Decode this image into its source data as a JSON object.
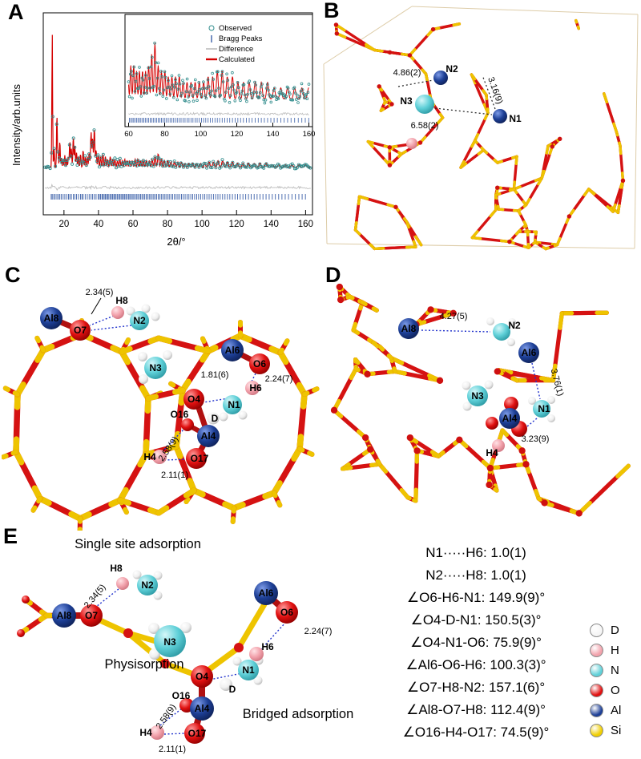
{
  "atom_colors": {
    "D": "#f5f5f5",
    "H": "#f2a2ac",
    "N": "#5fd0d8",
    "O": "#e01010",
    "Al": "#1d3f96",
    "Si": "#f0ce00"
  },
  "panel_a": {
    "label": "A",
    "ylabel": "Intensity/arb.units",
    "xlabel": "2θ/°"
  },
  "chart_data": {
    "type": "line",
    "xlabel": "2θ/°",
    "ylabel": "Intensity/arb.units",
    "xlim": [
      8,
      164
    ],
    "x_ticks": [
      20,
      40,
      60,
      80,
      100,
      120,
      140,
      160
    ],
    "grid": false,
    "legend_position": "inset-top-right",
    "series": [
      {
        "name": "Observed",
        "marker": "open-circle",
        "color": "#2e8b8b"
      },
      {
        "name": "Bragg Peaks",
        "marker": "vertical-tick",
        "color": "#3a5fa8"
      },
      {
        "name": "Difference",
        "marker": "line",
        "color": "#bcbcbc"
      },
      {
        "name": "Calculated",
        "marker": "line",
        "color": "#d40000"
      }
    ],
    "peaks_2theta_intensity": [
      [
        13.2,
        100
      ],
      [
        14.3,
        14
      ],
      [
        15.9,
        40
      ],
      [
        16.6,
        12
      ],
      [
        17.6,
        20
      ],
      [
        18.5,
        7
      ],
      [
        19.5,
        6
      ],
      [
        20.5,
        9
      ],
      [
        21.6,
        6
      ],
      [
        22.6,
        8
      ],
      [
        23.4,
        20
      ],
      [
        24.3,
        14
      ],
      [
        25.4,
        23
      ],
      [
        26.3,
        16
      ],
      [
        27.3,
        11
      ],
      [
        28.4,
        8
      ],
      [
        29.6,
        10
      ],
      [
        31.1,
        13
      ],
      [
        32.3,
        8
      ],
      [
        33.5,
        8
      ],
      [
        34.6,
        11
      ],
      [
        35.7,
        26
      ],
      [
        36.6,
        22
      ],
      [
        37.6,
        29
      ],
      [
        38.6,
        13
      ],
      [
        39.8,
        9
      ],
      [
        41.2,
        8
      ],
      [
        42.6,
        10
      ],
      [
        44.0,
        8
      ],
      [
        45.3,
        6
      ],
      [
        46.8,
        8
      ],
      [
        48.2,
        6
      ],
      [
        49.5,
        6
      ],
      [
        51.0,
        5
      ],
      [
        52.4,
        6
      ],
      [
        53.8,
        5
      ],
      [
        55.2,
        6
      ],
      [
        56.6,
        5
      ],
      [
        58.1,
        5
      ],
      [
        59.6,
        5
      ],
      [
        61.2,
        6
      ],
      [
        62.8,
        6
      ],
      [
        64.4,
        5
      ],
      [
        66.0,
        5
      ],
      [
        67.7,
        5
      ],
      [
        69.4,
        5
      ],
      [
        71.1,
        6
      ],
      [
        72.8,
        8
      ],
      [
        74.6,
        10
      ],
      [
        76.4,
        6
      ],
      [
        78.2,
        5
      ],
      [
        80.1,
        5
      ],
      [
        82.0,
        4
      ],
      [
        84.0,
        4
      ],
      [
        86.0,
        4
      ],
      [
        88.1,
        4
      ],
      [
        90.2,
        3
      ],
      [
        92.4,
        3
      ],
      [
        94.6,
        3
      ],
      [
        96.9,
        3
      ],
      [
        99.2,
        3
      ],
      [
        101.6,
        3
      ],
      [
        104.1,
        4
      ],
      [
        106.6,
        4
      ],
      [
        109.2,
        5
      ],
      [
        111.9,
        5
      ],
      [
        114.7,
        4
      ],
      [
        117.6,
        4
      ],
      [
        120.6,
        3
      ],
      [
        123.7,
        3
      ],
      [
        126.9,
        3
      ],
      [
        130.2,
        3
      ],
      [
        133.6,
        3
      ],
      [
        137.1,
        3
      ],
      [
        140.7,
        2
      ],
      [
        144.4,
        2
      ],
      [
        148.2,
        2
      ],
      [
        152.1,
        2
      ],
      [
        156.1,
        2
      ],
      [
        159.9,
        2
      ]
    ],
    "bragg_ticks": [
      12.6,
      13.2,
      14.1,
      14.9,
      15.9,
      16.8,
      17.6,
      18.4,
      19.5,
      20.5,
      21.6,
      22.6,
      23.4,
      24.3,
      25.4,
      26.3,
      27.3,
      28.4,
      29.6,
      30.4,
      31.1,
      32.3,
      33.5,
      34.6,
      35.7,
      36.6,
      37.6,
      38.6,
      39.8,
      40.5,
      41.2,
      42.0,
      42.6,
      43.3,
      44.0,
      44.7,
      45.3,
      46.0,
      46.8,
      47.5,
      48.2,
      48.9,
      49.5,
      50.2,
      51.0,
      51.7,
      52.4,
      53.1,
      53.8,
      54.5,
      55.2,
      55.9,
      56.6,
      57.4,
      58.1,
      58.8,
      59.6,
      60.4,
      61.2,
      62.0,
      62.8,
      63.6,
      64.4,
      65.2,
      66.0,
      66.8,
      67.7,
      68.5,
      69.4,
      70.2,
      71.1,
      72.0,
      72.8,
      73.7,
      74.6,
      75.5,
      76.4,
      77.3,
      78.2,
      79.1,
      80.1,
      81.0,
      82.0,
      83.0,
      84.0,
      85.0,
      86.0,
      87.0,
      88.1,
      89.1,
      90.2,
      91.3,
      92.4,
      93.5,
      94.6,
      95.7,
      96.9,
      98.0,
      99.2,
      100.4,
      101.6,
      102.8,
      104.1,
      105.3,
      106.6,
      107.9,
      109.2,
      110.5,
      111.9,
      113.3,
      114.7,
      116.1,
      117.6,
      119.1,
      120.6,
      122.1,
      123.7,
      125.3,
      126.9,
      128.5,
      130.2,
      131.9,
      133.6,
      135.3,
      137.1,
      138.9,
      140.7,
      142.5,
      144.4,
      146.3,
      148.2,
      150.1,
      152.1,
      154.1,
      156.1,
      158.0,
      159.9
    ],
    "inset": {
      "xlim": [
        58,
        162
      ],
      "x_ticks": [
        60,
        80,
        100,
        120,
        140,
        160
      ]
    }
  },
  "panel_b": {
    "label": "B",
    "atom_labels": {
      "n2": "N2",
      "n3": "N3",
      "n1": "N1"
    },
    "distances": {
      "d1": "4.86(2)",
      "d2": "3.16(9)",
      "d3": "6.58(2)"
    }
  },
  "panel_c": {
    "label": "C",
    "atom_labels": {
      "al8": "Al8",
      "o7": "O7",
      "h8": "H8",
      "n2": "N2",
      "n3": "N3",
      "al6": "Al6",
      "o6": "O6",
      "o4": "O4",
      "n1": "N1",
      "h6": "H6",
      "d": "D",
      "o16": "O16",
      "al4": "Al4",
      "h4": "H4",
      "o17": "O17"
    },
    "distances": {
      "d_o7_h8": "2.34(5)",
      "d_o4_n1": "1.81(6)",
      "d_o6_h6": "2.24(7)",
      "d_h4_o16": "2.58(9)",
      "d_h4_o17": "2.11(1)"
    }
  },
  "panel_d": {
    "label": "D",
    "atom_labels": {
      "al8": "Al8",
      "n2": "N2",
      "al6": "Al6",
      "n3": "N3",
      "al4": "Al4",
      "n1": "N1",
      "h4": "H4"
    },
    "distances": {
      "d1": "4.27(5)",
      "d2": "3.76(1)",
      "d3": "3.23(9)"
    }
  },
  "panel_e": {
    "label": "E",
    "captions": {
      "single_site": "Single site adsorption",
      "physisorption": "Physisorption",
      "bridged": "Bridged adsorption"
    },
    "atom_labels": {
      "h8": "H8",
      "n2": "N2",
      "al8": "Al8",
      "o7": "O7",
      "al6": "Al6",
      "o6": "O6",
      "n3": "N3",
      "h6": "H6",
      "n1": "N1",
      "d": "D",
      "o4": "O4",
      "o16": "O16",
      "al4": "Al4",
      "h4": "H4",
      "o17": "O17"
    },
    "distances": {
      "d_o7_h8": "2.34(5)",
      "d_o6_h6": "2.24(7)",
      "d_h4_o16": "2.58(9)",
      "d_h4_o17": "2.11(1)"
    },
    "measurements": [
      "N1·····H6: 1.0(1)",
      "N2·····H8: 1.0(1)",
      "∠O6-H6-N1: 149.9(9)°",
      "∠O4-D-N1: 150.5(3)°",
      "∠O4-N1-O6: 75.9(9)°",
      "∠Al6-O6-H6: 100.3(3)°",
      "∠O7-H8-N2: 157.1(6)°",
      "∠Al8-O7-H8: 112.4(9)°",
      "∠O16-H4-O17: 74.5(9)°"
    ],
    "legend": [
      {
        "symbol": "D",
        "color": "#f5f5f5"
      },
      {
        "symbol": "H",
        "color": "#f2a2ac"
      },
      {
        "symbol": "N",
        "color": "#5fd0d8"
      },
      {
        "symbol": "O",
        "color": "#e01010"
      },
      {
        "symbol": "Al",
        "color": "#1d3f96"
      },
      {
        "symbol": "Si",
        "color": "#f0ce00"
      }
    ]
  }
}
